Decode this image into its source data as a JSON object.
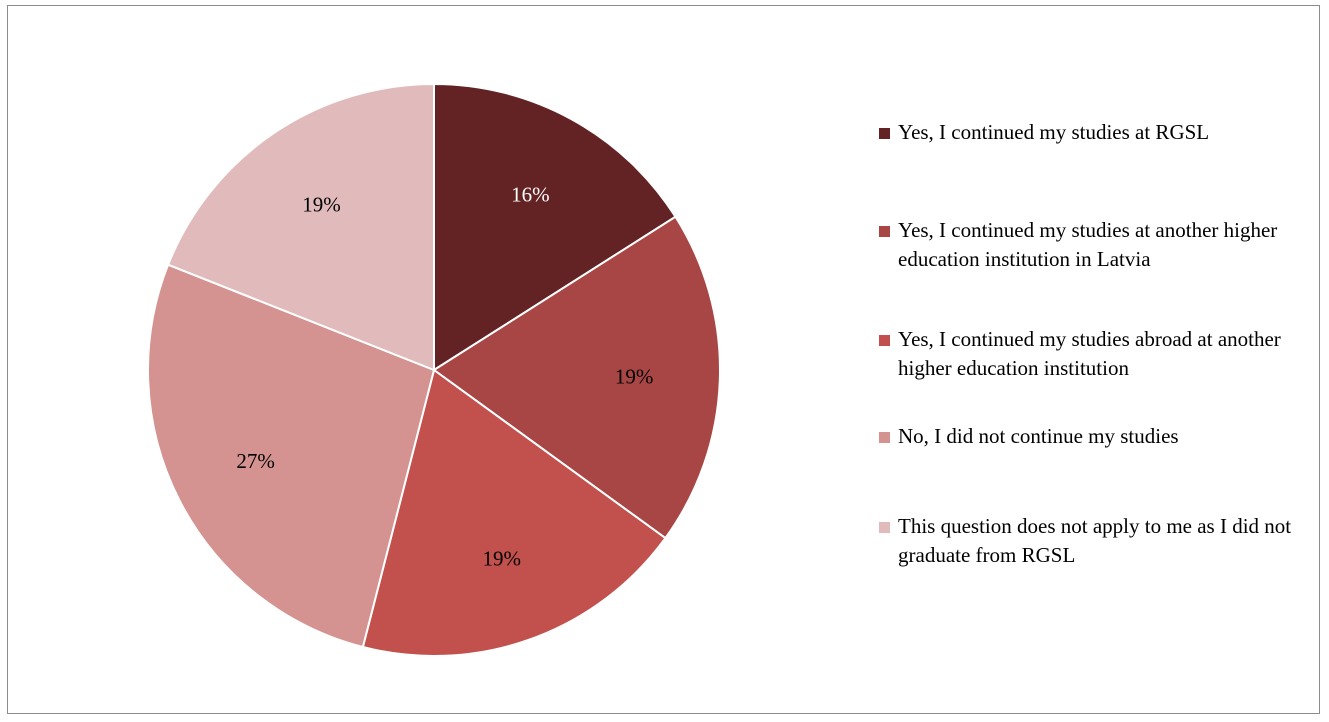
{
  "chart_data": {
    "type": "pie",
    "title": "",
    "slices": [
      {
        "label": "Yes, I continued my studies at RGSL",
        "value": 16,
        "display": "16%",
        "color": "#632223",
        "label_color": "#ffffff"
      },
      {
        "label": "Yes, I continued my studies at another higher education institution in Latvia",
        "value": 19,
        "display": "19%",
        "color": "#a84645",
        "label_color": "#000000"
      },
      {
        "label": "Yes, I continued my studies abroad at another higher education institution",
        "value": 19,
        "display": "19%",
        "color": "#c2504d",
        "label_color": "#000000"
      },
      {
        "label": "No, I did not continue my studies",
        "value": 27,
        "display": "27%",
        "color": "#d49391",
        "label_color": "#000000"
      },
      {
        "label": "This question does not apply to me as I did not graduate from RGSL",
        "value": 19,
        "display": "19%",
        "color": "#e1bbbb",
        "label_color": "#000000"
      }
    ],
    "legend_position": "right",
    "start_angle": "top",
    "direction": "clockwise"
  }
}
